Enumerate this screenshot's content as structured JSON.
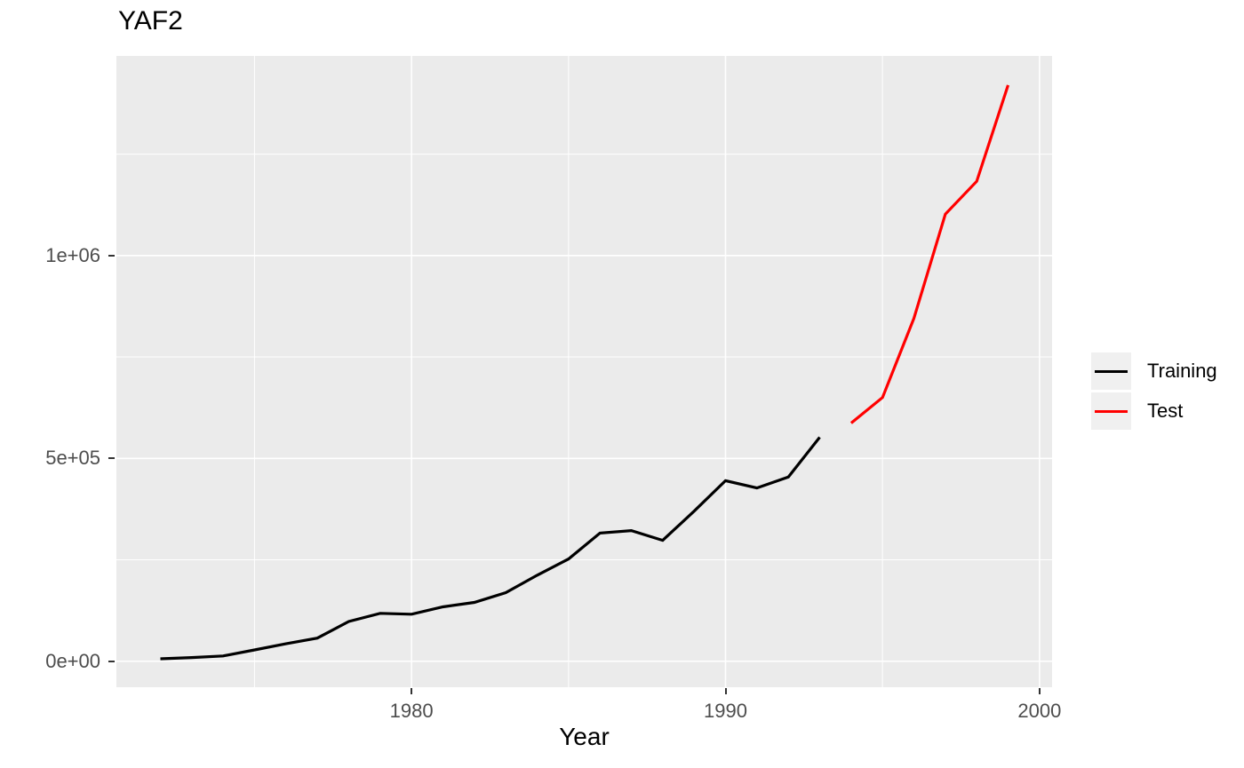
{
  "colors": {
    "panel_bg": "#EBEBEB",
    "grid": "#FFFFFF",
    "tick_label": "#4D4D4D",
    "tick_mark": "#333333",
    "legend_key_bg": "#F0F0F0",
    "training": "#000000",
    "test": "#FF0000"
  },
  "chart_data": {
    "type": "line",
    "title": "YAF2",
    "xlabel": "Year",
    "ylabel": "",
    "grid": true,
    "legend_position": "right",
    "xlim": [
      1970.6,
      2000.4
    ],
    "ylim": [
      -64000,
      1492000
    ],
    "x_ticks": [
      {
        "value": 1980,
        "label": "1980"
      },
      {
        "value": 1990,
        "label": "1990"
      },
      {
        "value": 2000,
        "label": "2000"
      }
    ],
    "x_minor_ticks": [
      1975,
      1985,
      1995
    ],
    "y_ticks": [
      {
        "value": 0,
        "label": "0e+00"
      },
      {
        "value": 500000,
        "label": "5e+05"
      },
      {
        "value": 1000000,
        "label": "1e+06"
      }
    ],
    "y_minor_ticks": [
      250000,
      750000,
      1250000
    ],
    "series": [
      {
        "name": "Training",
        "color": "#000000",
        "x": [
          1972,
          1973,
          1974,
          1975,
          1976,
          1977,
          1978,
          1979,
          1980,
          1981,
          1982,
          1983,
          1984,
          1985,
          1986,
          1987,
          1988,
          1989,
          1990,
          1991,
          1992,
          1993
        ],
        "values": [
          6000,
          9000,
          13000,
          28000,
          43000,
          57000,
          98000,
          118000,
          116000,
          134000,
          145000,
          169000,
          212000,
          252000,
          316000,
          322000,
          298000,
          370000,
          445000,
          427000,
          454000,
          552000
        ]
      },
      {
        "name": "Test",
        "color": "#FF0000",
        "x": [
          1994,
          1995,
          1996,
          1997,
          1998,
          1999
        ],
        "values": [
          587000,
          650000,
          845000,
          1102000,
          1183000,
          1420000
        ]
      }
    ]
  }
}
